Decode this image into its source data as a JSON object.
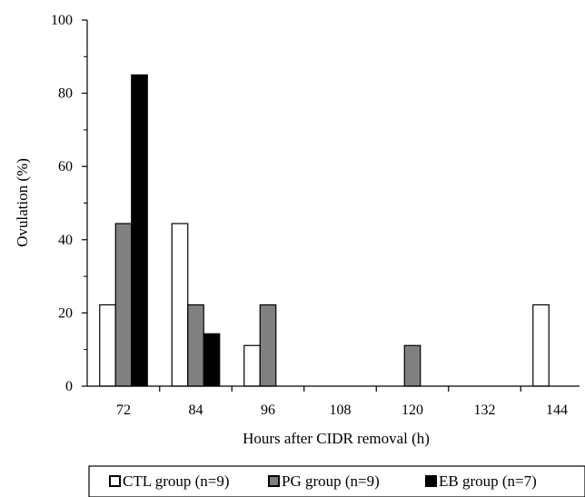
{
  "chart_data": {
    "type": "bar",
    "title": "",
    "xlabel": "Hours after CIDR removal (h)",
    "ylabel": "Ovulation (%)",
    "ylim": [
      0,
      100
    ],
    "yticks": [
      0,
      20,
      40,
      60,
      80,
      100
    ],
    "categories": [
      "72",
      "84",
      "96",
      "108",
      "120",
      "132",
      "144"
    ],
    "series": [
      {
        "name": "CTL group (n=9)",
        "color": "#ffffff",
        "values": [
          22.2,
          44.4,
          11.1,
          0,
          0,
          0,
          22.2
        ]
      },
      {
        "name": "PG group (n=9)",
        "color": "#808080",
        "values": [
          44.4,
          22.2,
          22.2,
          0,
          11.1,
          0,
          0
        ]
      },
      {
        "name": "EB group (n=7)",
        "color": "#000000",
        "values": [
          85.0,
          14.3,
          0,
          0,
          0,
          0,
          0
        ]
      }
    ],
    "grid": false,
    "legend_position": "bottom"
  }
}
